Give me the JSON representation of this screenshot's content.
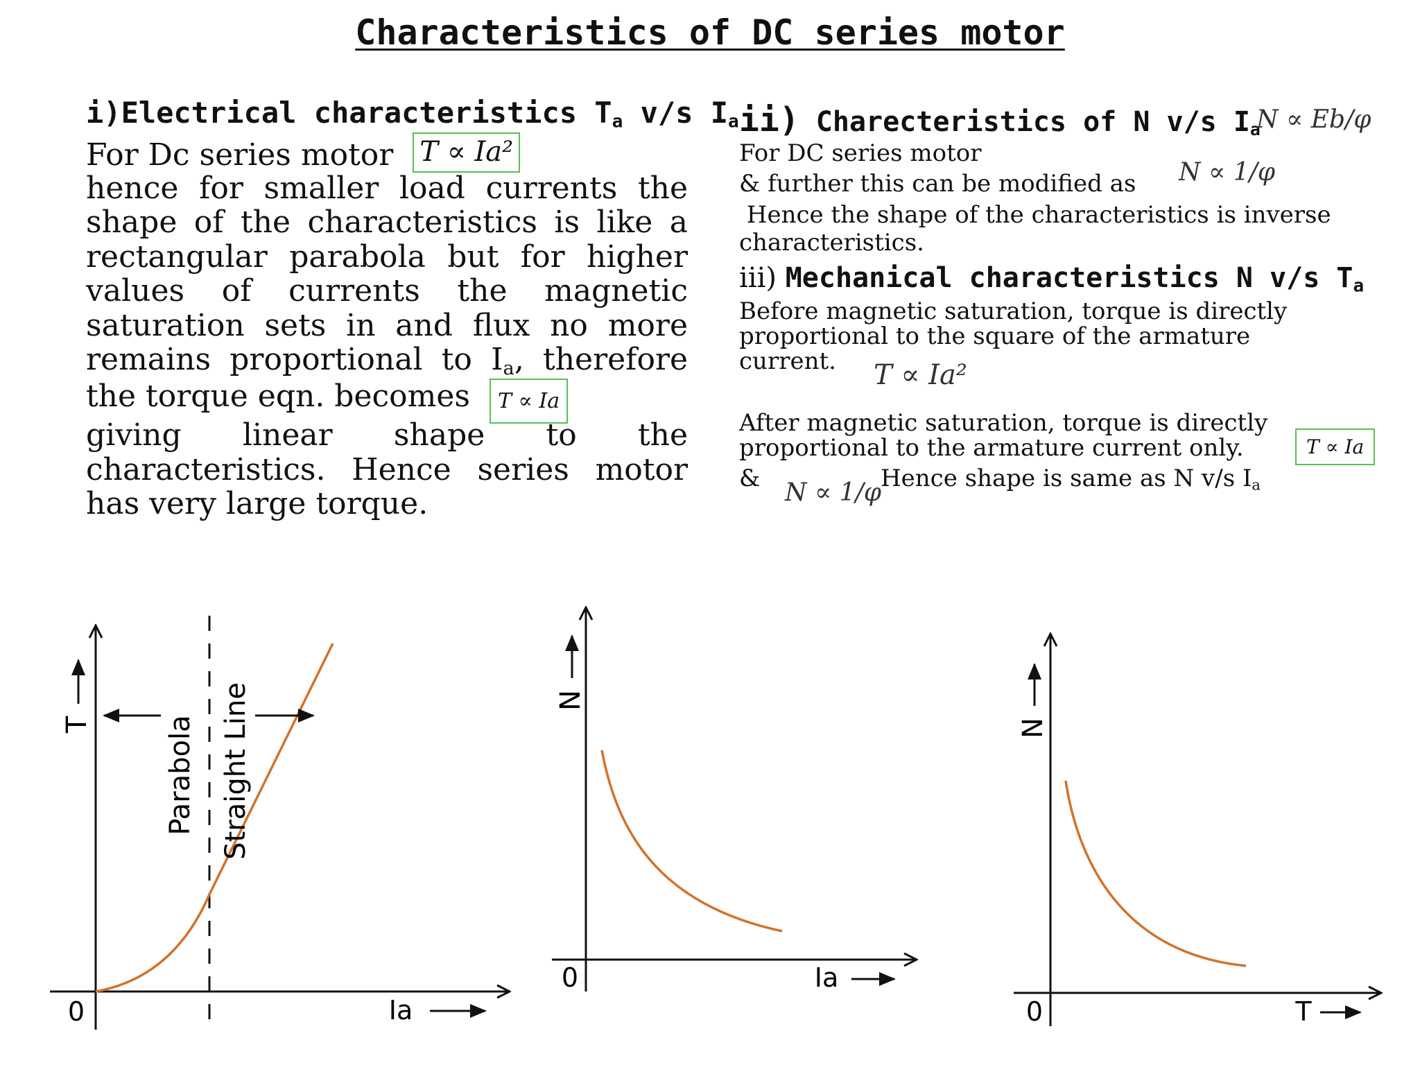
{
  "title": "Characteristics of DC series motor",
  "left": {
    "heading_prefix": "i)Electrical characteristics T",
    "heading_sub1": "a",
    "heading_mid": " v/s I",
    "heading_sub2": "a",
    "line1": "For Dc series motor",
    "formula1": "T ∝ Ia²",
    "line2": "hence for smaller load currents the",
    "line3": "shape of the characteristics is like a",
    "line4": "rectangular parabola but for higher",
    "line5": "values of currents the magnetic",
    "line6": "saturation sets in and flux no more",
    "line7a": "remains proportional to I",
    "line7sub": "a",
    "line7b": ", therefore",
    "line8": "the torque eqn. becomes",
    "formula2": "T ∝ Ia",
    "line9": "giving linear shape to the",
    "line10": "characteristics. Hence series motor",
    "line11": "has very large torque."
  },
  "right": {
    "h2_num": "ii)",
    "h2_text": " Charecteristics of N v/s I",
    "h2_sub": "a",
    "formula_eb": "N ∝ Eb/φ",
    "line1": "For DC series motor",
    "line2": "& further this can be modified as",
    "formula_inv": "N ∝ 1/φ",
    "line3": " Hence the shape of the characteristics is inverse",
    "line4": "characteristics.",
    "h3_num": "iii) ",
    "h3_text": "Mechanical characteristics N v/s T",
    "h3_sub": "a",
    "line5": "Before magnetic saturation, torque is directly",
    "line6": "proportional to the square of the armature",
    "line7": "current.",
    "formula_sq": "T ∝ Ia²",
    "line8": "After magnetic saturation, torque is directly",
    "line9": "proportional to the armature current only.",
    "formula_lin": "T ∝ Ia",
    "amp": "&",
    "formula_inv2": "N ∝ 1/φ",
    "line10a": "Hence shape is same as N v/s I",
    "line10sub": "a"
  },
  "chart_data": [
    {
      "type": "line",
      "xlabel": "Ia",
      "ylabel": "T",
      "origin_label": "0",
      "annotations": [
        "Parabola",
        "Straight Line"
      ],
      "curve_color": "#d2722b",
      "note": "parabolic rise up to saturation (dashed line), then straight line"
    },
    {
      "type": "line",
      "xlabel": "Ia",
      "ylabel": "N",
      "origin_label": "0",
      "curve_color": "#d2722b"
    },
    {
      "type": "line",
      "xlabel": "T",
      "ylabel": "N",
      "origin_label": "0",
      "curve_color": "#d2722b"
    }
  ]
}
